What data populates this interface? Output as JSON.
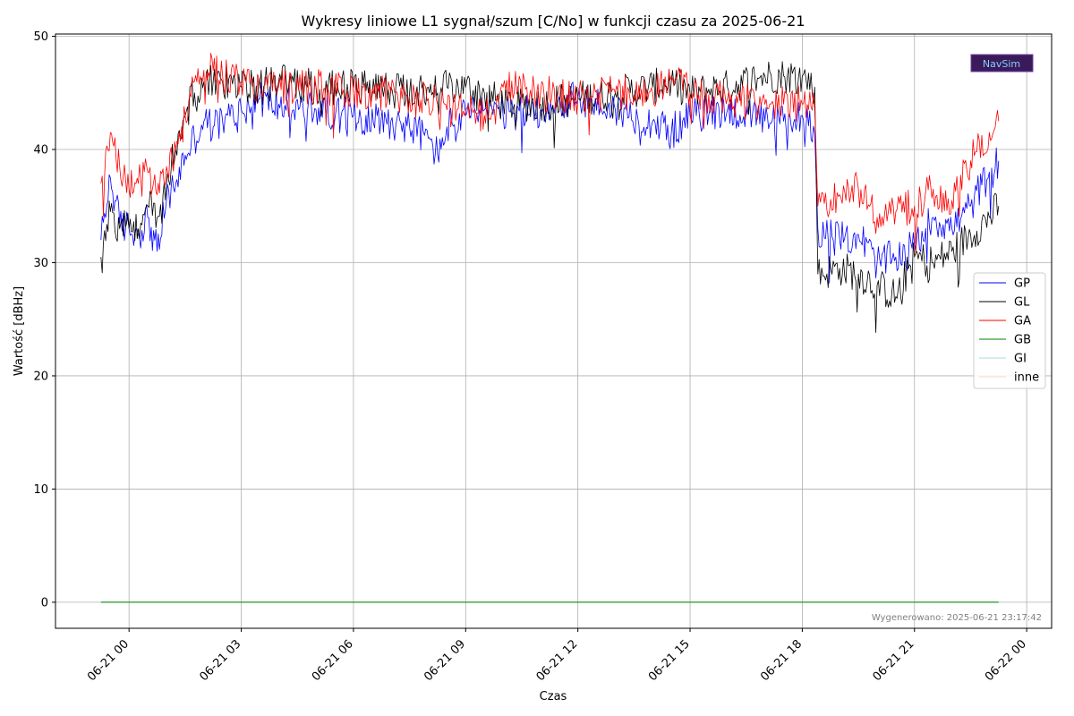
{
  "chart_data": {
    "type": "line",
    "title": "Wykresy liniowe L1 sygnał/szum [C/No] w funkcji czasu za 2025-06-21",
    "xlabel": "Czas",
    "ylabel": "Wartość [dBHz]",
    "x_unit": "hours from 2025-06-21 00:00",
    "xlim": [
      "2025-06-20 22:02",
      "2025-06-22 00:40"
    ],
    "ylim": [
      -2.3,
      50.2
    ],
    "x_ticks": [
      "06-21 00",
      "06-21 03",
      "06-21 06",
      "06-21 09",
      "06-21 12",
      "06-21 15",
      "06-21 18",
      "06-21 21",
      "06-22 00"
    ],
    "y_ticks": [
      "0",
      "10",
      "20",
      "30",
      "40",
      "50"
    ],
    "grid": true,
    "legend_position": "right",
    "x": [
      "2025-06-20 23:15",
      "2025-06-20 23:30",
      "2025-06-20 23:45",
      "2025-06-21 00:00",
      "2025-06-21 00:15",
      "2025-06-21 00:30",
      "2025-06-21 00:45",
      "2025-06-21 01:00",
      "2025-06-21 01:15",
      "2025-06-21 01:30",
      "2025-06-21 01:45",
      "2025-06-21 02:00",
      "2025-06-21 02:15",
      "2025-06-21 02:30",
      "2025-06-21 03:00",
      "2025-06-21 03:30",
      "2025-06-21 04:00",
      "2025-06-21 05:00",
      "2025-06-21 06:00",
      "2025-06-21 07:00",
      "2025-06-21 07:30",
      "2025-06-21 08:00",
      "2025-06-21 08:15",
      "2025-06-21 08:30",
      "2025-06-21 09:00",
      "2025-06-21 09:30",
      "2025-06-21 10:00",
      "2025-06-21 11:00",
      "2025-06-21 12:00",
      "2025-06-21 13:00",
      "2025-06-21 14:00",
      "2025-06-21 14:30",
      "2025-06-21 15:00",
      "2025-06-21 16:00",
      "2025-06-21 17:00",
      "2025-06-21 17:30",
      "2025-06-21 18:00",
      "2025-06-21 18:20",
      "2025-06-21 18:25",
      "2025-06-21 19:00",
      "2025-06-21 19:30",
      "2025-06-21 20:00",
      "2025-06-21 20:30",
      "2025-06-21 21:00",
      "2025-06-21 21:30",
      "2025-06-21 22:00",
      "2025-06-21 22:30",
      "2025-06-21 23:00",
      "2025-06-21 23:15"
    ],
    "series": [
      {
        "name": "GP",
        "color": "#0000ff",
        "values": [
          32.0,
          37.5,
          33.5,
          33.0,
          32.5,
          34.0,
          31.0,
          35.5,
          37.0,
          39.5,
          41.0,
          42.5,
          42.0,
          42.5,
          43.5,
          44.5,
          44.0,
          43.5,
          43.0,
          42.5,
          42.0,
          41.0,
          39.5,
          42.0,
          43.0,
          43.5,
          43.0,
          43.5,
          44.5,
          43.5,
          42.5,
          41.5,
          43.0,
          43.5,
          42.5,
          42.5,
          43.0,
          41.5,
          33.0,
          32.0,
          32.5,
          30.0,
          30.5,
          31.5,
          34.0,
          33.0,
          35.0,
          38.0,
          39.0
        ]
      },
      {
        "name": "GL",
        "color": "#000000",
        "values": [
          30.5,
          34.5,
          33.0,
          33.0,
          33.0,
          35.0,
          34.0,
          37.0,
          40.0,
          43.0,
          45.0,
          46.0,
          46.0,
          46.0,
          45.5,
          45.5,
          46.0,
          45.5,
          45.5,
          45.5,
          45.0,
          45.5,
          45.0,
          45.5,
          45.5,
          45.0,
          44.0,
          44.0,
          44.5,
          45.0,
          45.5,
          46.0,
          45.0,
          45.5,
          46.5,
          46.5,
          46.5,
          45.5,
          29.0,
          29.5,
          29.0,
          28.0,
          27.0,
          30.5,
          30.0,
          31.0,
          32.5,
          34.0,
          35.0
        ]
      },
      {
        "name": "GA",
        "color": "#ff0000",
        "values": [
          37.0,
          41.5,
          38.5,
          36.5,
          37.0,
          38.0,
          36.0,
          38.5,
          40.0,
          43.0,
          46.0,
          47.0,
          47.0,
          46.5,
          46.0,
          45.5,
          45.5,
          45.5,
          45.0,
          45.0,
          44.5,
          44.5,
          44.0,
          43.5,
          43.5,
          43.0,
          45.5,
          45.0,
          44.5,
          45.0,
          45.0,
          46.5,
          45.0,
          44.5,
          44.0,
          44.0,
          44.0,
          43.5,
          35.0,
          36.0,
          36.5,
          34.0,
          34.5,
          35.0,
          36.5,
          35.5,
          39.0,
          41.5,
          42.5
        ]
      },
      {
        "name": "GB",
        "color": "#008000",
        "values": [
          0,
          0,
          0,
          0,
          0,
          0,
          0,
          0,
          0,
          0,
          0,
          0,
          0,
          0,
          0,
          0,
          0,
          0,
          0,
          0,
          0,
          0,
          0,
          0,
          0,
          0,
          0,
          0,
          0,
          0,
          0,
          0,
          0,
          0,
          0,
          0,
          0,
          0,
          0,
          0,
          0,
          0,
          0,
          0,
          0,
          0,
          0,
          0,
          0
        ]
      },
      {
        "name": "GI",
        "color": "#add8e6",
        "values": [
          0,
          0,
          0,
          0,
          0,
          0,
          0,
          0,
          0,
          0,
          0,
          0,
          0,
          0,
          0,
          0,
          0,
          0,
          0,
          0,
          0,
          0,
          0,
          0,
          0,
          0,
          0,
          0,
          0,
          0,
          0,
          0,
          0,
          0,
          0,
          0,
          0,
          0,
          0,
          0,
          0,
          0,
          0,
          0,
          0,
          0,
          0,
          0,
          0
        ]
      },
      {
        "name": "inne",
        "color": "#ffdab9",
        "values": [
          0,
          0,
          0,
          0,
          0,
          0,
          0,
          0,
          0,
          0,
          0,
          0,
          0,
          0,
          0,
          0,
          0,
          0,
          0,
          0,
          0,
          0,
          0,
          0,
          0,
          0,
          0,
          0,
          0,
          0,
          0,
          0,
          0,
          0,
          0,
          0,
          0,
          0,
          0,
          0,
          0,
          0,
          0,
          0,
          0,
          0,
          0,
          0,
          0
        ]
      }
    ]
  },
  "footer": {
    "generated": "Wygenerowano: 2025-06-21 23:17:42"
  },
  "logo": {
    "text": "NavSim"
  }
}
